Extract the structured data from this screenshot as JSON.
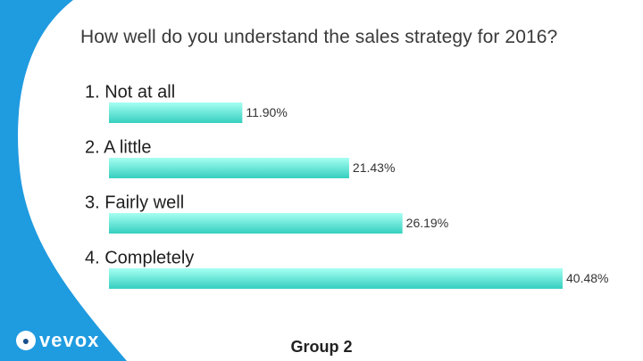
{
  "question": "How well do you understand the sales strategy for 2016?",
  "footer": {
    "group_label": "Group 2",
    "logo_text": "vevox"
  },
  "colors": {
    "bar_top": "#a6fff2",
    "bar_bottom": "#35cfbf",
    "accent": "#1f9be0"
  },
  "chart_data": {
    "type": "bar",
    "orientation": "horizontal",
    "categories": [
      "1.  Not at all",
      "2.  A little",
      "3.  Fairly well",
      "4.  Completely"
    ],
    "values": [
      11.9,
      21.43,
      26.19,
      40.48
    ],
    "value_labels": [
      "11.90%",
      "21.43%",
      "26.19%",
      "40.48%"
    ],
    "unit": "%",
    "xlim": [
      0,
      40.48
    ],
    "grid": false,
    "legend": "none"
  }
}
